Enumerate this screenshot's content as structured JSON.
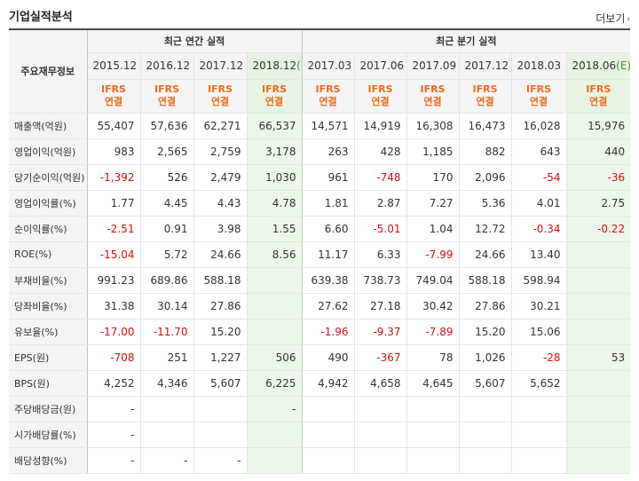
{
  "header": {
    "title": "기업실적분석",
    "more_label": "더보기"
  },
  "table": {
    "row_header_label": "주요재무정보",
    "groups": {
      "annual": "최근 연간 실적",
      "quarter": "최근 분기 실적"
    },
    "periods": [
      {
        "date": "2015.12",
        "est": ""
      },
      {
        "date": "2016.12",
        "est": ""
      },
      {
        "date": "2017.12",
        "est": ""
      },
      {
        "date": "2018.12",
        "est": "(E)"
      },
      {
        "date": "2017.03",
        "est": ""
      },
      {
        "date": "2017.06",
        "est": ""
      },
      {
        "date": "2017.09",
        "est": ""
      },
      {
        "date": "2017.12",
        "est": ""
      },
      {
        "date": "2018.03",
        "est": ""
      },
      {
        "date": "2018.06",
        "est": "(E)"
      }
    ],
    "ifrs_line1": "IFRS",
    "ifrs_line2": "연결",
    "rows": [
      {
        "label": "매출액(억원)",
        "values": [
          "55,407",
          "57,636",
          "62,271",
          "66,537",
          "14,571",
          "14,919",
          "16,308",
          "16,473",
          "16,028",
          "15,976"
        ]
      },
      {
        "label": "영업이익(억원)",
        "values": [
          "983",
          "2,565",
          "2,759",
          "3,178",
          "263",
          "428",
          "1,185",
          "882",
          "643",
          "440"
        ]
      },
      {
        "label": "당기순이익(억원)",
        "values": [
          "-1,392",
          "526",
          "2,479",
          "1,030",
          "961",
          "-748",
          "170",
          "2,096",
          "-54",
          "-36"
        ]
      },
      {
        "label": "영업이익률(%)",
        "values": [
          "1.77",
          "4.45",
          "4.43",
          "4.78",
          "1.81",
          "2.87",
          "7.27",
          "5.36",
          "4.01",
          "2.75"
        ]
      },
      {
        "label": "순이익률(%)",
        "values": [
          "-2.51",
          "0.91",
          "3.98",
          "1.55",
          "6.60",
          "-5.01",
          "1.04",
          "12.72",
          "-0.34",
          "-0.22"
        ]
      },
      {
        "label": "ROE(%)",
        "values": [
          "-15.04",
          "5.72",
          "24.66",
          "8.56",
          "11.17",
          "6.33",
          "-7.99",
          "24.66",
          "13.40",
          ""
        ]
      },
      {
        "label": "부채비율(%)",
        "values": [
          "991.23",
          "689.86",
          "588.18",
          "",
          "639.38",
          "738.73",
          "749.04",
          "588.18",
          "598.94",
          ""
        ]
      },
      {
        "label": "당좌비율(%)",
        "values": [
          "31.38",
          "30.14",
          "27.86",
          "",
          "27.62",
          "27.18",
          "30.42",
          "27.86",
          "30.21",
          ""
        ]
      },
      {
        "label": "유보율(%)",
        "values": [
          "-17.00",
          "-11.70",
          "15.20",
          "",
          "-1.96",
          "-9.37",
          "-7.89",
          "15.20",
          "15.06",
          ""
        ]
      },
      {
        "label": "EPS(원)",
        "values": [
          "-708",
          "251",
          "1,227",
          "506",
          "490",
          "-367",
          "78",
          "1,026",
          "-28",
          "53"
        ]
      },
      {
        "label": "BPS(원)",
        "values": [
          "4,252",
          "4,346",
          "5,607",
          "6,225",
          "4,942",
          "4,658",
          "4,645",
          "5,607",
          "5,652",
          ""
        ]
      },
      {
        "label": "주당배당금(원)",
        "values": [
          "-",
          "",
          "",
          "-",
          "",
          "",
          "",
          "",
          "",
          ""
        ]
      },
      {
        "label": "시가배당률(%)",
        "values": [
          "-",
          "",
          "",
          "",
          "",
          "",
          "",
          "",
          "",
          ""
        ]
      },
      {
        "label": "배당성향(%)",
        "values": [
          "-",
          "-",
          "-",
          "",
          "",
          "",
          "",
          "",
          "",
          ""
        ]
      }
    ]
  }
}
